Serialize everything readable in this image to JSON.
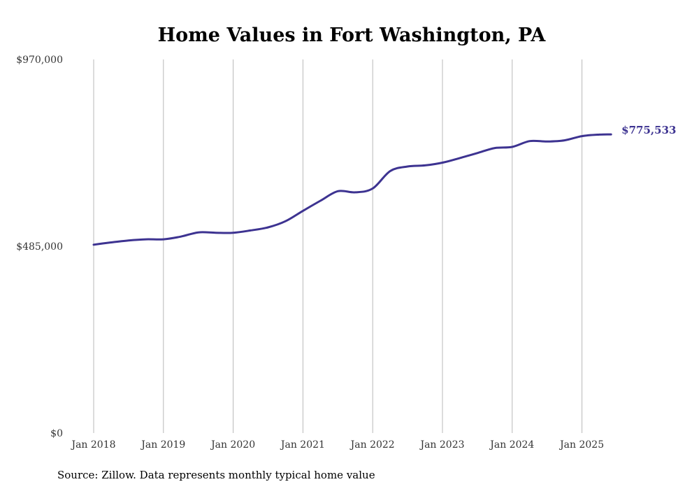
{
  "chart_data": {
    "type": "line",
    "title": "Home Values in Fort Washington, PA",
    "source": "Source: Zillow. Data represents monthly typical home value",
    "xlabel": "",
    "ylabel": "",
    "ylim": [
      0,
      970000
    ],
    "yticks": [
      {
        "value": 0,
        "label": "$0"
      },
      {
        "value": 485000,
        "label": "$485,000"
      },
      {
        "value": 970000,
        "label": "$970,000"
      }
    ],
    "xticks": [
      "Jan 2018",
      "Jan 2019",
      "Jan 2020",
      "Jan 2021",
      "Jan 2022",
      "Jan 2023",
      "Jan 2024",
      "Jan 2025"
    ],
    "xlim": [
      "2018-01",
      "2025-06"
    ],
    "grid": "vertical",
    "line_color": "#3d3391",
    "end_label": "$775,533",
    "series": [
      {
        "x": [
          "2018-01",
          "2018-04",
          "2018-07",
          "2018-10",
          "2019-01",
          "2019-04",
          "2019-07",
          "2019-10",
          "2020-01",
          "2020-04",
          "2020-07",
          "2020-10",
          "2021-01",
          "2021-04",
          "2021-07",
          "2021-10",
          "2022-01",
          "2022-04",
          "2022-07",
          "2022-10",
          "2023-01",
          "2023-04",
          "2023-07",
          "2023-10",
          "2024-01",
          "2024-04",
          "2024-07",
          "2024-10",
          "2025-01",
          "2025-04",
          "2025-06"
        ],
        "values": [
          489000,
          495000,
          500000,
          503000,
          503000,
          510000,
          521000,
          520000,
          520000,
          526000,
          534000,
          550000,
          577000,
          603000,
          628000,
          625000,
          635000,
          680000,
          692000,
          695000,
          702000,
          714000,
          727000,
          740000,
          743000,
          758000,
          757000,
          760000,
          771000,
          775000,
          775533
        ]
      }
    ]
  }
}
